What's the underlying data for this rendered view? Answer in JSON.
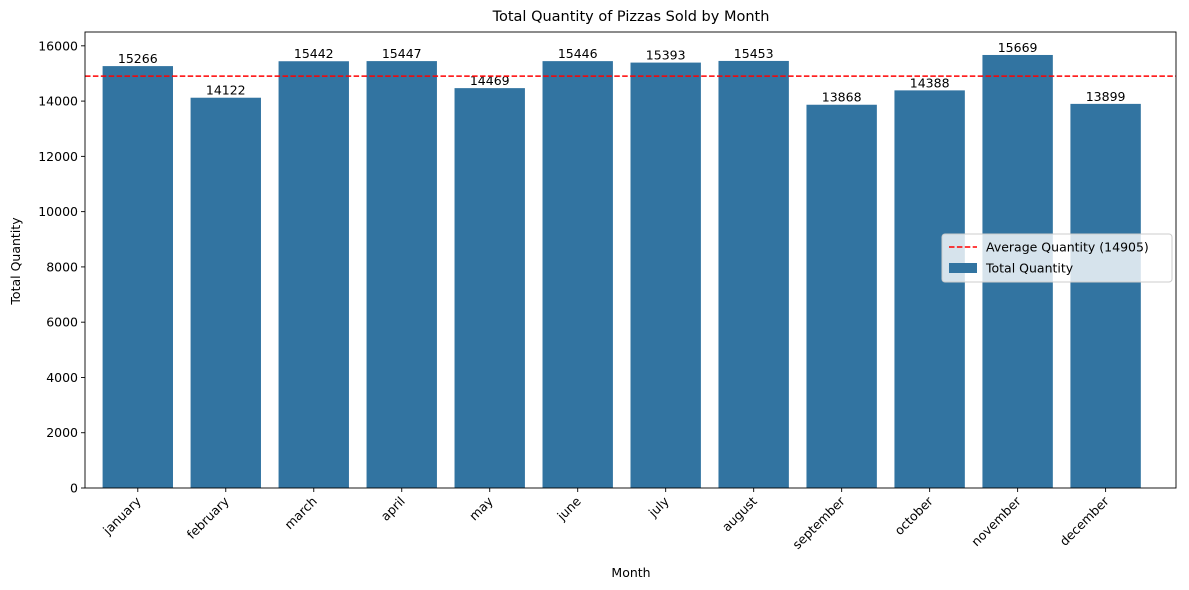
{
  "chart_data": {
    "type": "bar",
    "title": "Total Quantity of Pizzas Sold by Month",
    "xlabel": "Month",
    "ylabel": "Total Quantity",
    "categories": [
      "january",
      "february",
      "march",
      "april",
      "may",
      "june",
      "july",
      "august",
      "september",
      "october",
      "november",
      "december"
    ],
    "series": [
      {
        "name": "Total Quantity",
        "values": [
          15266,
          14122,
          15442,
          15447,
          14469,
          15446,
          15393,
          15453,
          13868,
          14388,
          15669,
          13899
        ],
        "color": "#3274a1"
      }
    ],
    "average_line": {
      "label": "Average Quantity (14905)",
      "value": 14905,
      "color": "#ff0000",
      "style": "dashed"
    },
    "ylim": [
      0,
      16500
    ],
    "yticks": [
      0,
      2000,
      4000,
      6000,
      8000,
      10000,
      12000,
      14000,
      16000
    ],
    "grid": false,
    "legend_position": "center-right"
  }
}
